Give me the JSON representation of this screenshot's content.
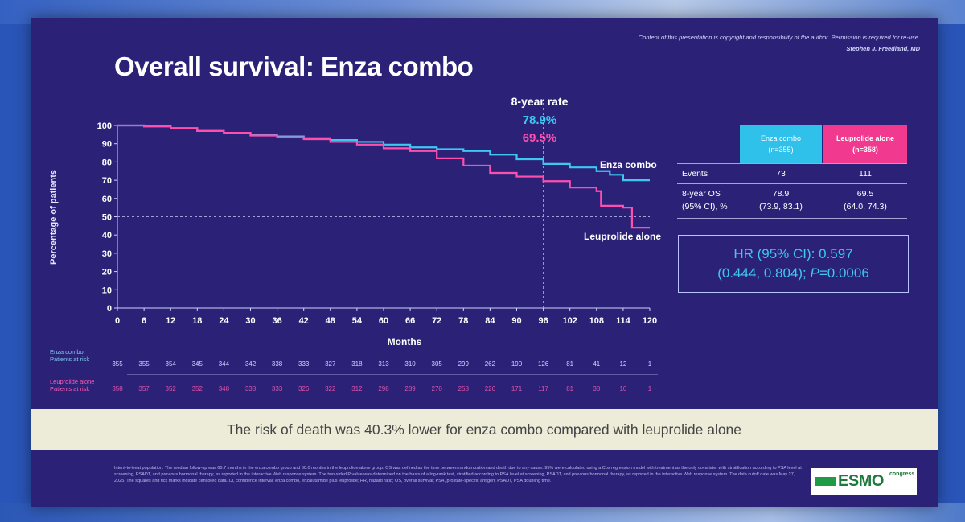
{
  "header": {
    "copyright": "Content of this presentation is copyright and responsibility of the author. Permission is required for re-use.",
    "author": "Stephen J. Freedland, MD",
    "title": "Overall survival: Enza combo"
  },
  "annotations": {
    "year_rate": "8-year rate",
    "combo_rate": "78.9%",
    "leuprolide_rate": "69.5%",
    "combo_label": "Enza combo",
    "leuprolide_label": "Leuprolide alone"
  },
  "colors": {
    "background": "#2b2278",
    "enza_combo": "#3ec7f0",
    "leuprolide_alone": "#ff4fae",
    "reference_line": "#9fa3d6"
  },
  "chart_data": {
    "type": "line",
    "title": "",
    "xlabel": "Months",
    "ylabel": "Percentage of patients",
    "xlim": [
      0,
      120
    ],
    "ylim": [
      0,
      100
    ],
    "x_ticks": [
      0,
      6,
      12,
      18,
      24,
      30,
      36,
      42,
      48,
      54,
      60,
      66,
      72,
      78,
      84,
      90,
      96,
      102,
      108,
      114,
      120
    ],
    "y_ticks": [
      0,
      10,
      20,
      30,
      40,
      50,
      60,
      70,
      80,
      90,
      100
    ],
    "reference_lines": {
      "y": 50,
      "x": 96
    },
    "series": [
      {
        "name": "Enza combo",
        "color": "#3ec7f0",
        "x": [
          0,
          6,
          12,
          18,
          24,
          30,
          36,
          42,
          48,
          54,
          60,
          66,
          72,
          78,
          84,
          90,
          96,
          102,
          108,
          111,
          114,
          120
        ],
        "y": [
          100,
          99.5,
          98.5,
          97,
          96,
          95,
          94,
          93,
          92,
          91,
          89.5,
          88,
          87,
          86,
          84,
          81.5,
          78.9,
          77,
          75,
          73,
          70,
          70
        ]
      },
      {
        "name": "Leuprolide alone",
        "color": "#ff4fae",
        "x": [
          0,
          6,
          12,
          18,
          24,
          30,
          36,
          42,
          48,
          54,
          60,
          66,
          72,
          78,
          84,
          90,
          96,
          102,
          108,
          109,
          114,
          116,
          120
        ],
        "y": [
          100,
          99.5,
          98.5,
          97,
          96,
          94.5,
          93.5,
          92.5,
          91,
          89.5,
          87.5,
          86,
          82,
          78,
          74,
          72,
          69.5,
          66,
          64,
          56,
          55,
          44,
          44
        ]
      }
    ],
    "risk_table": {
      "time_points": [
        0,
        6,
        12,
        18,
        24,
        30,
        36,
        42,
        48,
        54,
        60,
        66,
        72,
        78,
        84,
        90,
        96,
        102,
        108,
        114,
        120
      ],
      "rows": [
        {
          "name": "Enza combo",
          "label_line1": "Enza combo",
          "label_line2": "Patients at risk",
          "values": [
            "355",
            "355",
            "354",
            "345",
            "344",
            "342",
            "338",
            "333",
            "327",
            "318",
            "313",
            "310",
            "305",
            "299",
            "262",
            "190",
            "126",
            "81",
            "41",
            "12",
            "1"
          ]
        },
        {
          "name": "Leuprolide alone",
          "label_line1": "Leuprolide alone",
          "label_line2": "Patients at risk",
          "values": [
            "358",
            "357",
            "352",
            "352",
            "348",
            "338",
            "333",
            "326",
            "322",
            "312",
            "298",
            "289",
            "270",
            "258",
            "226",
            "171",
            "117",
            "81",
            "38",
            "10",
            "1"
          ]
        }
      ]
    }
  },
  "table": {
    "col_combo_name": "Enza combo",
    "col_combo_n": "(n=355)",
    "col_leup_name": "Leuprolide alone",
    "col_leup_n": "(n=358)",
    "row_events_label": "Events",
    "events_combo": "73",
    "events_leup": "111",
    "row_os_label_1": "8-year OS",
    "row_os_label_2": "(95% CI), %",
    "os_combo": "78.9",
    "os_combo_ci": "(73.9, 83.1)",
    "os_leup": "69.5",
    "os_leup_ci": "(64.0, 74.3)"
  },
  "hr": {
    "line1": "HR (95% CI): 0.597",
    "line2_prefix": "(0.444, 0.804); ",
    "p_label": "P",
    "line2_suffix": "=0.0006"
  },
  "banner": "The risk of death was 40.3% lower for enza combo compared with leuprolide alone",
  "footnote": "Intent-to-treat population. The median follow-up was 60.7 months in the enza combo group and 60.0 months in the leuprolide alone group. OS was defined as the time between randomization and death due to any cause. 95% were calculated using a Cox regression model with treatment as the only covariate, with stratification according to PSA level at screening, PSADT, and previous hormonal therapy, as reported in the interactive Web response system. The two-sided P value was determined on the basis of a log-rank test, stratified according to PSA level at screening, PSADT, and previous hormonal therapy, as reported in the interactive Web response system. The data cutoff date was May 27, 2025. The squares and tick marks indicate censored data. CI, confidence interval; enza combo, enzalutamide plus leuprolide; HR, hazard ratio; OS, overall survival; PSA, prostate-specific antigen; PSADT, PSA doubling time.",
  "logo": {
    "text": "ESMO",
    "sub": "congress"
  }
}
